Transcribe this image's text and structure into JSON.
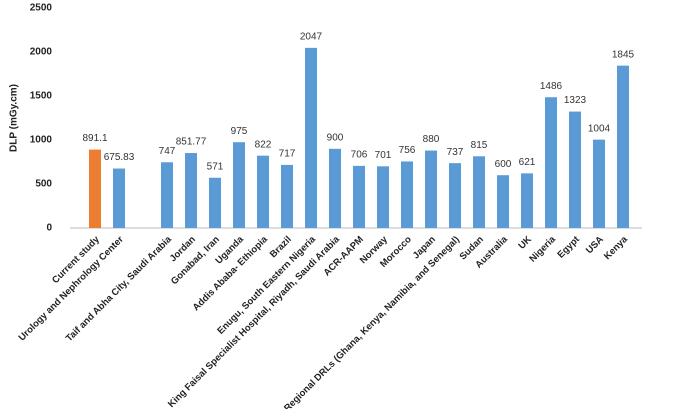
{
  "chart_data": {
    "type": "bar",
    "y_label": "DLP (mGy.cm)",
    "categories": [
      "Current study",
      "Urology and Nephrology Center",
      null,
      "Taif and Abha City, Saudi Arabia",
      "Jordan",
      "Gonabad, Iran",
      "Uganda",
      "Addis Ababa- Ethiopia",
      "Brazil",
      "Enugu, South Eastern Nigeria",
      "King Faisal Specialist Hospital, Riyadh, Saudi Arabia",
      "ACR-AAPM",
      "Norway",
      "Morocco",
      "Japan",
      "Regional DRLs (Ghana, Kenya, Namibia, and Senegal)",
      "Sudan",
      "Australia",
      "UK",
      "Nigeria",
      "Egypt",
      "USA",
      "Kenya"
    ],
    "values": [
      891.1,
      675.83,
      null,
      747,
      851.77,
      571,
      975,
      822,
      717,
      2047,
      900,
      706,
      701,
      756,
      880,
      737,
      815,
      600,
      621,
      1486,
      1323,
      1004,
      1845
    ],
    "colors": [
      "#ed7d31",
      "#5b9bd5",
      "#5b9bd5",
      "#5b9bd5",
      "#5b9bd5",
      "#5b9bd5",
      "#5b9bd5",
      "#5b9bd5",
      "#5b9bd5",
      "#5b9bd5",
      "#5b9bd5",
      "#5b9bd5",
      "#5b9bd5",
      "#5b9bd5",
      "#5b9bd5",
      "#5b9bd5",
      "#5b9bd5",
      "#5b9bd5",
      "#5b9bd5",
      "#5b9bd5",
      "#5b9bd5",
      "#5b9bd5",
      "#5b9bd5"
    ],
    "ylim": [
      0,
      2500
    ],
    "yticks": [
      0,
      500,
      1000,
      1500,
      2000,
      2500
    ],
    "grid": false
  }
}
